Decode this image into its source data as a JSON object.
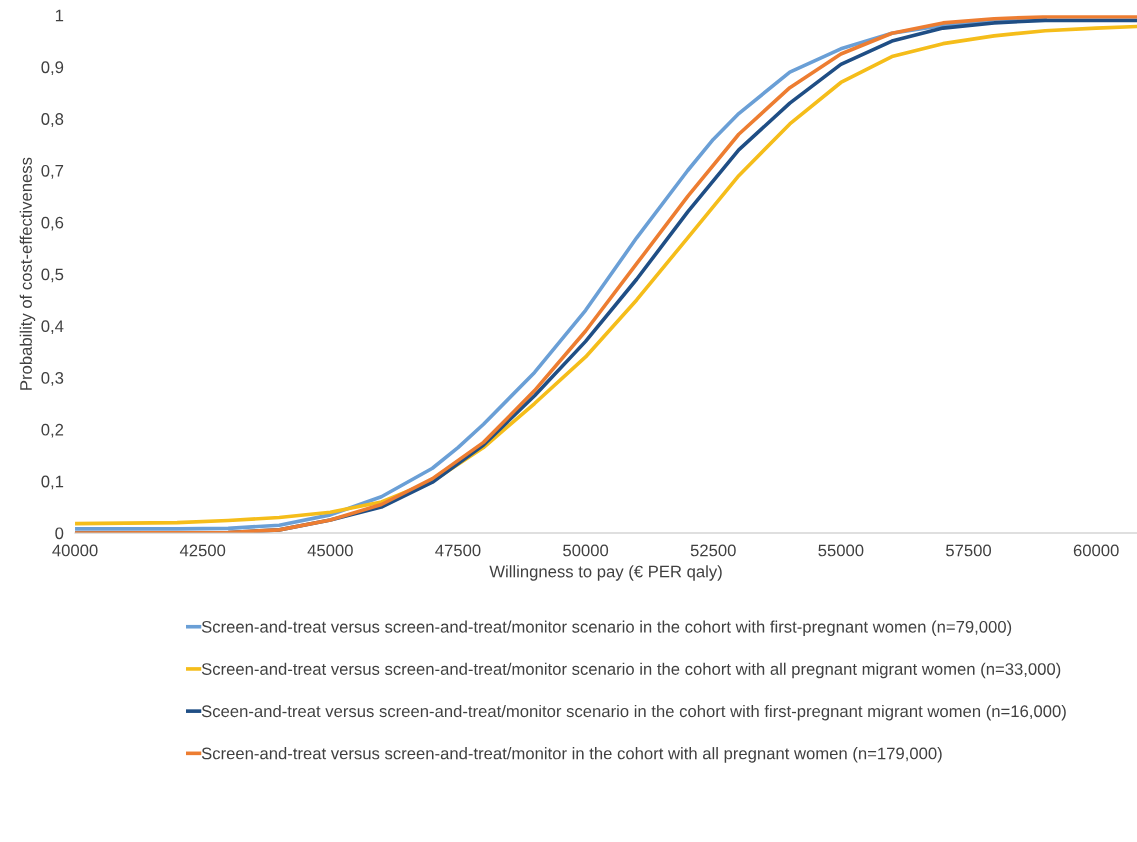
{
  "chart_data": {
    "type": "line",
    "xlabel": "Willingness to pay (€ PER qaly)",
    "ylabel": "Probability of cost-effectiveness",
    "xlim": [
      40000,
      60800
    ],
    "ylim": [
      0,
      1
    ],
    "xticks": [
      40000,
      42500,
      45000,
      47500,
      50000,
      52500,
      55000,
      57500,
      60000
    ],
    "yticks": [
      {
        "value": 0,
        "label": "0"
      },
      {
        "value": 0.1,
        "label": "0,1"
      },
      {
        "value": 0.2,
        "label": "0,2"
      },
      {
        "value": 0.3,
        "label": "0,3"
      },
      {
        "value": 0.4,
        "label": "0,4"
      },
      {
        "value": 0.5,
        "label": "0,5"
      },
      {
        "value": 0.6,
        "label": "0,6"
      },
      {
        "value": 0.7,
        "label": "0,7"
      },
      {
        "value": 0.8,
        "label": "0,8"
      },
      {
        "value": 0.9,
        "label": "0,9"
      },
      {
        "value": 1,
        "label": "1"
      }
    ],
    "grid": false,
    "legend": "bottom",
    "marker": "none",
    "line_style": "solid",
    "series": [
      {
        "name": "Screen-and-treat versus screen-and-treat/monitor scenario in the cohort with first-pregnant women (n=79,000)",
        "color": "#6a9fd6",
        "x": [
          40000,
          42000,
          43000,
          44000,
          45000,
          46000,
          47000,
          47500,
          48000,
          49000,
          50000,
          51000,
          52000,
          52500,
          53000,
          54000,
          55000,
          56000,
          57000,
          58000,
          59000
        ],
        "values": [
          0.008,
          0.008,
          0.009,
          0.015,
          0.035,
          0.07,
          0.125,
          0.165,
          0.21,
          0.31,
          0.43,
          0.57,
          0.7,
          0.76,
          0.81,
          0.89,
          0.935,
          0.965,
          0.98,
          0.99,
          0.993
        ]
      },
      {
        "name": "Screen-and-treat versus screen-and-treat/monitor scenario in the cohort with all pregnant migrant women (n=33,000)",
        "color": "#f5bd1a",
        "x": [
          40000,
          42000,
          43000,
          44000,
          45000,
          46000,
          47000,
          48000,
          49000,
          50000,
          51000,
          52000,
          53000,
          54000,
          55000,
          56000,
          57000,
          58000,
          59000,
          60000,
          60800
        ],
        "values": [
          0.018,
          0.02,
          0.024,
          0.03,
          0.04,
          0.06,
          0.1,
          0.165,
          0.25,
          0.34,
          0.45,
          0.57,
          0.69,
          0.79,
          0.87,
          0.92,
          0.945,
          0.96,
          0.97,
          0.975,
          0.978
        ]
      },
      {
        "name": "Sceen-and-treat versus screen-and-treat/monitor scenario in the cohort with first-pregnant migrant women (n=16,000)",
        "color": "#1f4e85",
        "x": [
          40000,
          43000,
          44000,
          45000,
          46000,
          47000,
          48000,
          49000,
          50000,
          51000,
          52000,
          53000,
          54000,
          55000,
          56000,
          57000,
          58000,
          59000,
          60000,
          60800
        ],
        "values": [
          0.0,
          0.001,
          0.006,
          0.025,
          0.05,
          0.098,
          0.17,
          0.265,
          0.37,
          0.49,
          0.62,
          0.74,
          0.83,
          0.905,
          0.95,
          0.975,
          0.985,
          0.99,
          0.99,
          0.99
        ]
      },
      {
        "name": "Screen-and-treat versus screen-and-treat/monitor in the cohort with all pregnant women (n=179,000)",
        "color": "#ed7d31",
        "x": [
          40000,
          43000,
          44000,
          45000,
          46000,
          47000,
          48000,
          49000,
          50000,
          51000,
          52000,
          53000,
          54000,
          55000,
          56000,
          57000,
          58000,
          59000,
          60000,
          60800
        ],
        "values": [
          0.0,
          0.001,
          0.006,
          0.025,
          0.055,
          0.105,
          0.175,
          0.275,
          0.39,
          0.52,
          0.65,
          0.77,
          0.86,
          0.925,
          0.965,
          0.985,
          0.993,
          0.997,
          0.997,
          0.997
        ]
      }
    ]
  }
}
